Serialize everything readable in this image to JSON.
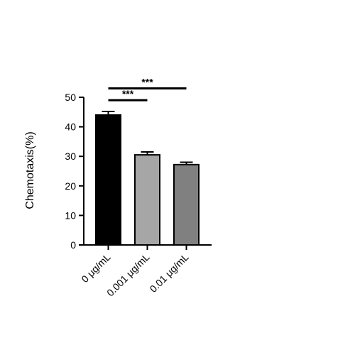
{
  "chart_data": {
    "type": "bar",
    "title": "",
    "xlabel": "",
    "ylabel": "Chemotaxis(%)",
    "ylim": [
      0,
      50
    ],
    "yticks": [
      0,
      10,
      20,
      30,
      40,
      50
    ],
    "grid": false,
    "legend": "none",
    "categories": [
      "0 μg/mL",
      "0.001 μg/mL",
      "0.01 μg/mL"
    ],
    "values": [
      44,
      30.5,
      27.2
    ],
    "errors": [
      1.2,
      1.0,
      0.8
    ],
    "bar_colors": [
      "#000000",
      "#a6a6a6",
      "#808080"
    ],
    "edge_color": "#000000",
    "significance": [
      {
        "from": 0,
        "to": 1,
        "label": "***",
        "y": 49
      },
      {
        "from": 0,
        "to": 2,
        "label": "***",
        "y": 53
      }
    ]
  }
}
